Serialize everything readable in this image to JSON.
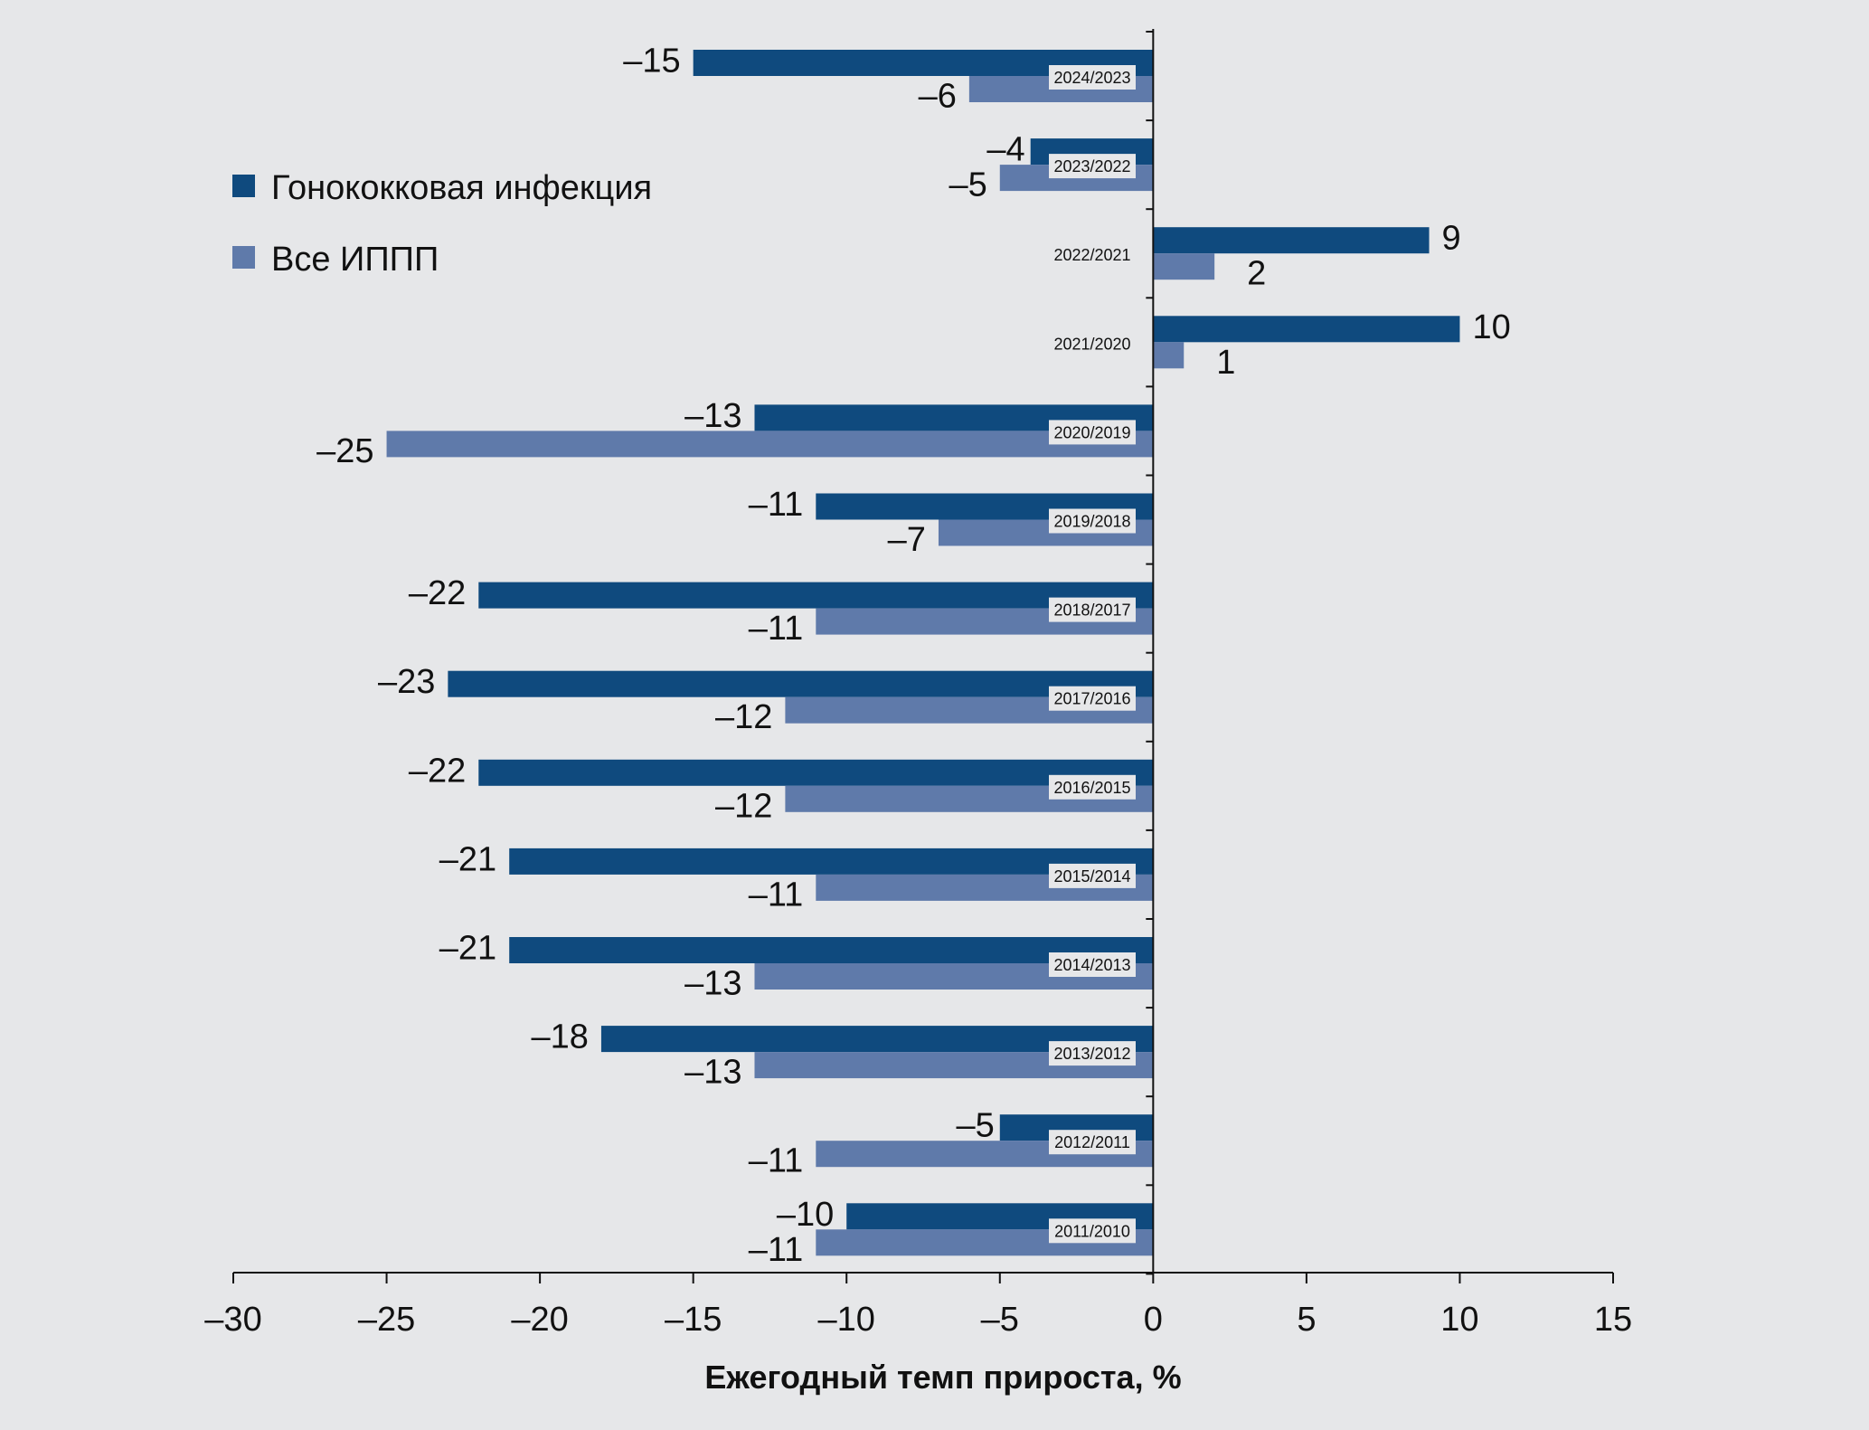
{
  "chart_data": {
    "type": "bar",
    "orientation": "horizontal",
    "title": "",
    "xlabel": "Ежегодный темп прироста, %",
    "ylabel": "",
    "xlim": [
      -30,
      15
    ],
    "xticks": [
      -30,
      -25,
      -20,
      -15,
      -10,
      -5,
      0,
      5,
      10,
      15
    ],
    "xtick_labels": [
      "–30",
      "–25",
      "–20",
      "–15",
      "–10",
      "–5",
      "0",
      "5",
      "10",
      "15"
    ],
    "grid": false,
    "legend_position": "top-left",
    "categories": [
      "2024/2023",
      "2023/2022",
      "2022/2021",
      "2021/2020",
      "2020/2019",
      "2019/2018",
      "2018/2017",
      "2017/2016",
      "2016/2015",
      "2015/2014",
      "2014/2013",
      "2013/2012",
      "2012/2011",
      "2011/2010"
    ],
    "highlighted_category_labels": [
      "2024/2023",
      "2023/2022",
      "2020/2019",
      "2019/2018",
      "2018/2017",
      "2017/2016",
      "2016/2015",
      "2015/2014",
      "2014/2013",
      "2013/2012",
      "2012/2011",
      "2011/2010"
    ],
    "series": [
      {
        "name": "Гонококковая инфекция",
        "color": "#0F4A7E",
        "values": [
          -15,
          -4,
          9,
          10,
          -13,
          -11,
          -22,
          -23,
          -22,
          -21,
          -21,
          -18,
          -5,
          -10
        ],
        "labels": [
          "–15",
          "–4",
          "9",
          "10",
          "–13",
          "–11",
          "–22",
          "–23",
          "–22",
          "–21",
          "–21",
          "–18",
          "–5",
          "–10"
        ]
      },
      {
        "name": "Все ИППП",
        "color": "#5F7AAA",
        "values": [
          -6,
          -5,
          2,
          1,
          -25,
          -7,
          -11,
          -12,
          -12,
          -11,
          -13,
          -13,
          -11,
          -11
        ],
        "labels": [
          "–6",
          "–5",
          "2",
          "1",
          "–25",
          "–7",
          "–11",
          "–12",
          "–12",
          "–11",
          "–13",
          "–13",
          "–11",
          "–11"
        ]
      }
    ]
  }
}
